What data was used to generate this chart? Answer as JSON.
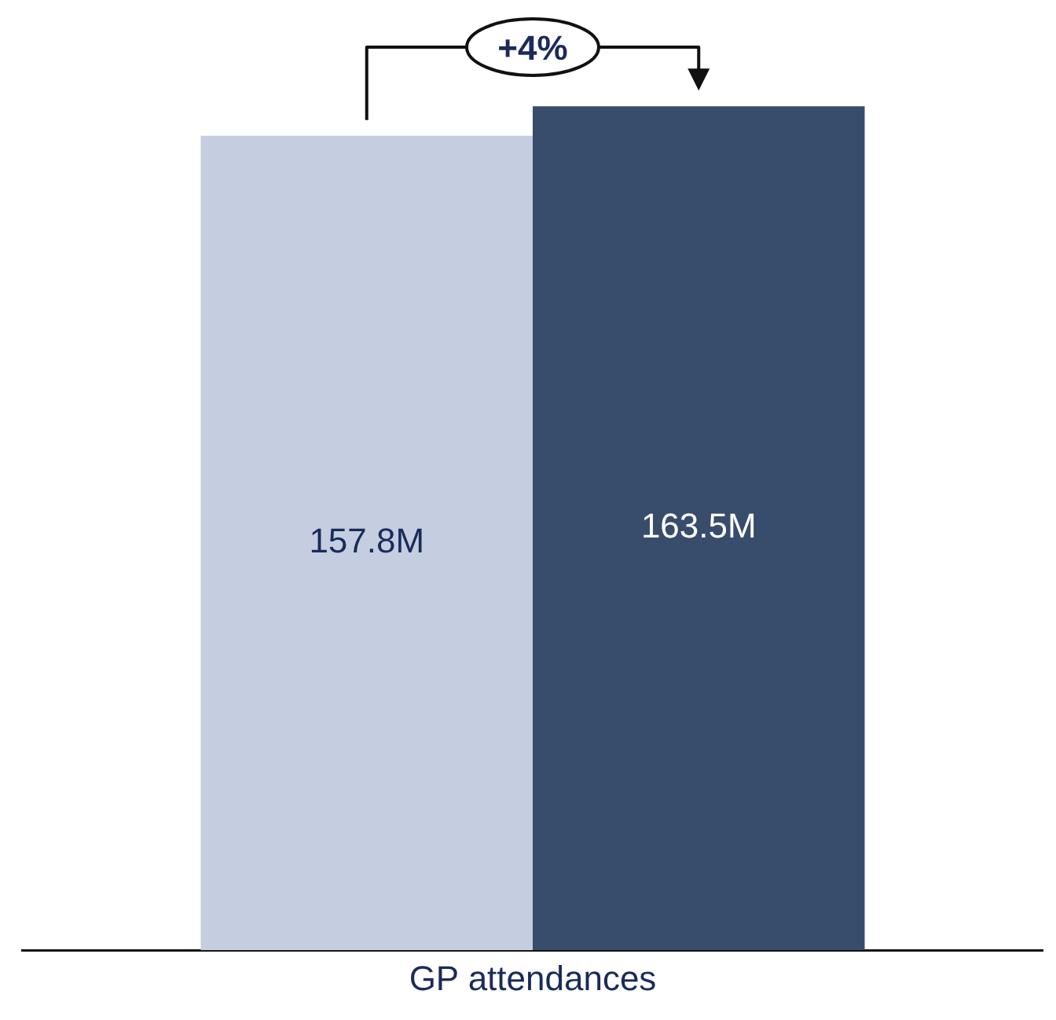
{
  "chart_data": {
    "type": "bar",
    "xlabel": "GP attendances",
    "categories": [
      null
    ],
    "series": [
      {
        "color": "#c5cee0",
        "values": [
          157.8
        ],
        "value_labels": [
          "157.8M"
        ]
      },
      {
        "color": "#384c6c",
        "values": [
          163.5
        ],
        "value_labels": [
          "163.5M"
        ]
      }
    ],
    "grid": false,
    "legend": false,
    "annotations": [
      "+4%"
    ]
  }
}
